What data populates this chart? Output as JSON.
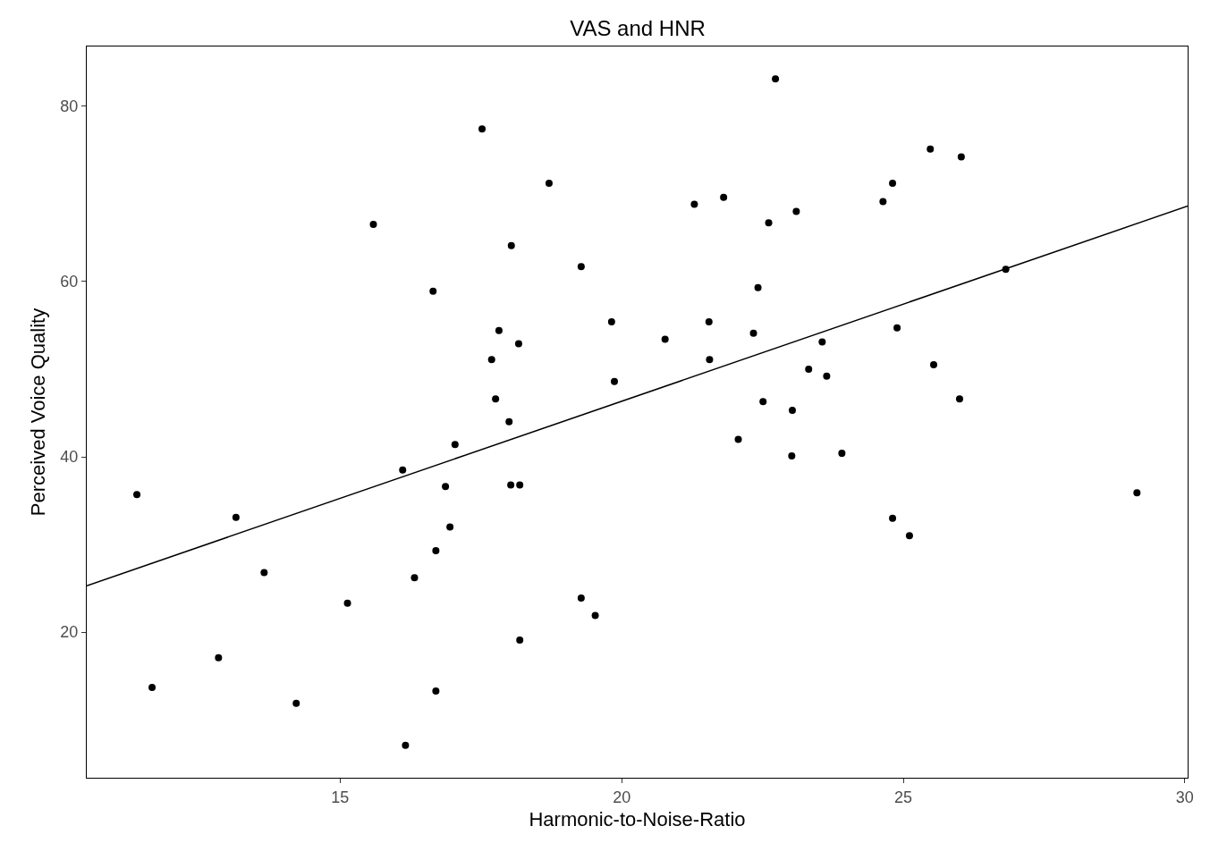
{
  "chart_data": {
    "type": "scatter",
    "title": "VAS and HNR",
    "xlabel": "Harmonic-to-Noise-Ratio",
    "ylabel": "Perceived Voice Quality",
    "xlim": [
      10.5,
      30.05
    ],
    "xticks": [
      15,
      20,
      25,
      30
    ],
    "ylim": [
      3.4,
      86.8
    ],
    "yticks": [
      20,
      40,
      60,
      80
    ],
    "grid": false,
    "marker": "circle",
    "series": [
      {
        "color": "#000000",
        "x": [
          11.39,
          11.66,
          12.84,
          13.15,
          13.65,
          14.22,
          15.13,
          15.59,
          16.11,
          16.16,
          16.32,
          16.65,
          16.7,
          16.7,
          16.87,
          16.95,
          17.04,
          17.52,
          17.69,
          17.76,
          17.82,
          18.0,
          18.03,
          18.04,
          18.17,
          18.19,
          18.19,
          18.71,
          19.28,
          19.28,
          19.53,
          19.82,
          19.87,
          20.77,
          21.29,
          21.55,
          21.56,
          21.81,
          22.07,
          22.34,
          22.42,
          22.51,
          22.61,
          22.73,
          23.03,
          23.02,
          23.1,
          23.32,
          23.56,
          23.64,
          23.91,
          24.64,
          24.81,
          24.81,
          24.89,
          25.11,
          25.48,
          25.54,
          26.0,
          26.03,
          26.82,
          29.15
        ],
        "values": [
          35.7,
          13.7,
          17.1,
          33.1,
          26.8,
          11.9,
          23.3,
          66.5,
          38.5,
          7.1,
          26.2,
          58.9,
          29.3,
          13.3,
          36.6,
          32.0,
          41.4,
          77.4,
          51.1,
          46.6,
          54.4,
          44.0,
          36.8,
          64.1,
          52.9,
          36.8,
          19.1,
          71.2,
          61.7,
          23.9,
          21.9,
          55.4,
          48.6,
          53.4,
          68.8,
          55.4,
          51.1,
          69.6,
          42.0,
          54.1,
          59.3,
          46.3,
          66.7,
          83.1,
          45.3,
          40.1,
          68.0,
          50.0,
          53.1,
          49.2,
          40.4,
          69.1,
          33.0,
          71.2,
          54.7,
          31.0,
          75.1,
          50.5,
          46.6,
          74.2,
          61.4,
          35.9
        ]
      },
      {
        "type": "line",
        "color": "#000000",
        "marker": "none",
        "line_style": "solid",
        "x": [
          10.5,
          30.05
        ],
        "values": [
          25.3,
          68.6
        ]
      }
    ]
  }
}
